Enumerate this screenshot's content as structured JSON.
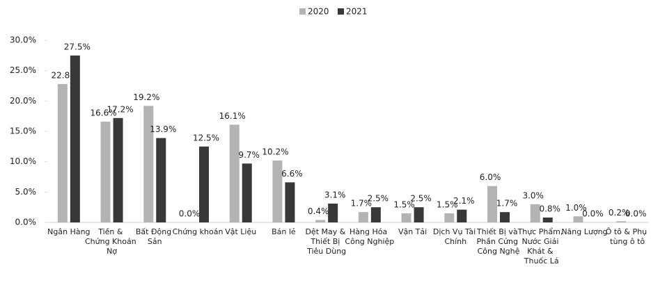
{
  "chart_data": {
    "type": "bar",
    "categories": [
      "Ngân Hàng",
      "Tiền & Chứng Khoán Nợ",
      "Bất Động Sản",
      "Chứng khoán",
      "Vật Liệu",
      "Bán lẻ",
      "Dệt May & Thiết Bị Tiêu Dùng",
      "Hàng Hóa Công Nghiệp",
      "Vận Tải",
      "Dịch Vụ Tài Chính",
      "Thiết Bị và Phần Cứng Công Nghệ",
      "Thực Phẩm, Nước Giải Khát & Thuốc Lá",
      "Năng Lượng",
      "Ô tô & Phụ tùng ô tô"
    ],
    "series": [
      {
        "name": "2020",
        "color": "#b3b3b3",
        "values": [
          22.8,
          16.6,
          19.2,
          0.0,
          16.1,
          10.2,
          0.4,
          1.7,
          1.5,
          1.5,
          6.0,
          3.0,
          1.0,
          0.2
        ],
        "value_labels": [
          "22.8",
          "16.6%",
          "19.2%",
          "0.0%",
          "16.1%",
          "10.2%",
          "0.4%",
          "1.7%",
          "1.5%",
          "1.5%",
          "6.0%",
          "3.0%",
          "1.0%",
          "0.2%"
        ]
      },
      {
        "name": "2021",
        "color": "#383838",
        "values": [
          27.5,
          17.2,
          13.9,
          12.5,
          9.7,
          6.6,
          3.1,
          2.5,
          2.5,
          2.1,
          1.7,
          0.8,
          0.0,
          0.0
        ],
        "value_labels": [
          "27.5%",
          "17.2%",
          "13.9%",
          "12.5%",
          "9.7%",
          "6.6%",
          "3.1%",
          "2.5%",
          "2.5%",
          "2.1%",
          "1.7%",
          "0.8%",
          "0.0%",
          "0.0%"
        ]
      }
    ],
    "ylim": [
      0,
      30
    ],
    "yticks": [
      {
        "value": 0,
        "label": "0.0%"
      },
      {
        "value": 5,
        "label": "5.0%"
      },
      {
        "value": 10,
        "label": "10.0%"
      },
      {
        "value": 15,
        "label": "15.0%"
      },
      {
        "value": 20,
        "label": "20.0%"
      },
      {
        "value": 25,
        "label": "25.0%"
      },
      {
        "value": 30,
        "label": "30.0%"
      }
    ],
    "grid": false,
    "legend": "top"
  }
}
